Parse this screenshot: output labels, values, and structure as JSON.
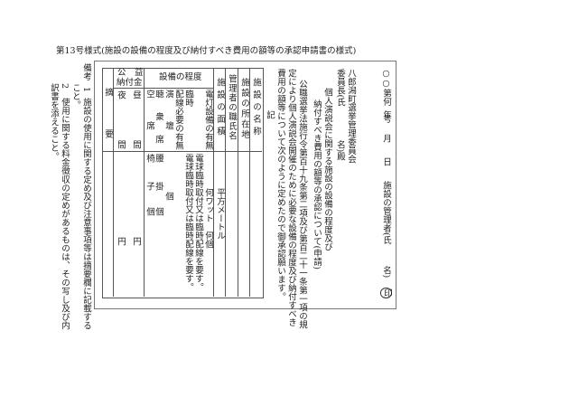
{
  "title": "第13号様式(施設の設備の程度及び納付すべき費用の額等の承認申請書の様式)",
  "notes": {
    "label": "備考",
    "n1": "1",
    "item1_a": "施設の使用に関する定め及び注意事項等は摘要欄に記載する",
    "item1_b": "こと。",
    "n2": "2",
    "item2_a": "使用に関する料金徴収の定めがあるものは、その写し及び内",
    "item2_b": "訳書を添えること。"
  },
  "letter": {
    "number": "○○第何　号",
    "year": "年",
    "month": "月",
    "day": "日",
    "manager_a": "施設の管理者(氏",
    "manager_b": "名)",
    "seal": "印",
    "addressee": "八郎潟町選挙管理委員会",
    "chair_a": "委員長(氏",
    "chair_b": "名)殿",
    "subject_a": "個人演説会に関する施設の設備の程度及び",
    "subject_b": "納付すべき費用の額等の承認について(申請)",
    "body_a": "公職選挙法施行令第百十九条第二項及び第百二十一条第一項の規",
    "body_b": "定により個人演説会開催のために必要な設備の程度及び納付すべき",
    "body_c": "費用の額等について次のように定めたので御承認願います。",
    "ki": "記"
  },
  "table": {
    "facility_name": "施設の名称",
    "facility_location": "施設の所在地",
    "manager_name": "管理者の職氏名",
    "facility_area": "施設の面積",
    "area_unit": "平方メートル",
    "equipment_header": "設備の程度",
    "lighting": "電灯設備の有無",
    "lighting_value": "何ワット　何個",
    "bulb": "電球臨時取付又は臨時配線を要す。",
    "bulb_value": "電球臨時取付又は臨時配線を要す。",
    "temp": "臨時",
    "wiring": "配線必要の有無",
    "podium": "演　壇",
    "podium_value": "個",
    "audience": "聴　衆　席",
    "audience_value_a": "腰",
    "audience_value_b": "掛",
    "audience_value_c": "個",
    "vacant": "空　席",
    "vacant_value_a": "椅",
    "vacant_value_b": "子",
    "vacant_value_c": "個",
    "fee_header_a": "公　益",
    "fee_header_b": "納付金",
    "day_a": "昼",
    "day_b": "間",
    "night_a": "夜",
    "night_b": "間",
    "yen": "円",
    "remarks_a": "摘",
    "remarks_b": "要"
  }
}
